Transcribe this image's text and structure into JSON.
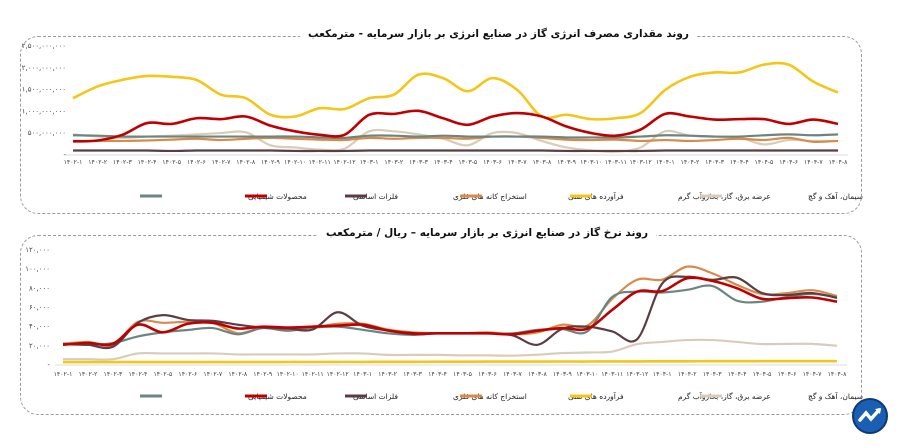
{
  "chart_data": [
    {
      "type": "line",
      "title": "روند مقداری مصرف انرژی گاز در صنایع انرژی بر بازار سرمایه - مترمکعب",
      "ylim": [
        0,
        2500000000
      ],
      "yticks": [
        0,
        500000000,
        1000000000,
        1500000000,
        2000000000,
        2500000000
      ],
      "ytick_labels": [
        "-",
        "۵۰۰,۰۰۰,۰۰۰",
        "۱,۰۰۰,۰۰۰,۰۰۰",
        "۱,۵۰۰,۰۰۰,۰۰۰",
        "۲,۰۰۰,۰۰۰,۰۰۰",
        "۲,۵۰۰,۰۰۰,۰۰۰"
      ],
      "grid": false,
      "legend": "bottom",
      "categories": [
        "۱۴۰۲-۱",
        "۱۴۰۲-۲",
        "۱۴۰۲-۳",
        "۱۴۰۲-۴",
        "۱۴۰۲-۵",
        "۱۴۰۲-۶",
        "۱۴۰۲-۷",
        "۱۴۰۲-۸",
        "۱۴۰۲-۹",
        "۱۴۰۲-۱۰",
        "۱۴۰۲-۱۱",
        "۱۴۰۲-۱۲",
        "۱۴۰۳-۱",
        "۱۴۰۳-۲",
        "۱۴۰۳-۳",
        "۱۴۰۳-۴",
        "۱۴۰۳-۵",
        "۱۴۰۳-۶",
        "۱۴۰۳-۷",
        "۱۴۰۳-۸",
        "۱۴۰۳-۹",
        "۱۴۰۳-۱۰",
        "۱۴۰۳-۱۱",
        "۱۴۰۳-۱۲",
        "۱۴۰۴-۱",
        "۱۴۰۴-۲",
        "۱۴۰۴-۳",
        "۱۴۰۴-۴",
        "۱۴۰۴-۵",
        "۱۴۰۴-۶",
        "۱۴۰۴-۷",
        "۱۴۰۴-۸"
      ],
      "series": [
        {
          "name": "محصولات شیمیایی",
          "color": "#6b8580",
          "values": [
            430000000,
            420000000,
            400000000,
            400000000,
            400000000,
            400000000,
            400000000,
            400000000,
            400000000,
            400000000,
            380000000,
            370000000,
            420000000,
            420000000,
            400000000,
            420000000,
            400000000,
            400000000,
            400000000,
            400000000,
            380000000,
            380000000,
            380000000,
            400000000,
            430000000,
            420000000,
            400000000,
            400000000,
            430000000,
            450000000,
            430000000,
            450000000
          ]
        },
        {
          "name": "فلزات اساسی",
          "color": "#c00000",
          "values": [
            290000000,
            310000000,
            440000000,
            710000000,
            690000000,
            820000000,
            800000000,
            860000000,
            650000000,
            520000000,
            440000000,
            440000000,
            900000000,
            920000000,
            990000000,
            820000000,
            670000000,
            860000000,
            940000000,
            860000000,
            630000000,
            480000000,
            420000000,
            560000000,
            920000000,
            860000000,
            790000000,
            800000000,
            800000000,
            690000000,
            790000000,
            690000000
          ]
        },
        {
          "name": "استخراج کانه های فلزی",
          "color": "#5a3e44",
          "values": [
            80000000,
            80000000,
            80000000,
            80000000,
            70000000,
            80000000,
            80000000,
            80000000,
            80000000,
            70000000,
            70000000,
            70000000,
            80000000,
            80000000,
            80000000,
            80000000,
            80000000,
            80000000,
            80000000,
            80000000,
            70000000,
            70000000,
            70000000,
            70000000,
            80000000,
            80000000,
            80000000,
            80000000,
            80000000,
            80000000,
            80000000,
            80000000
          ]
        },
        {
          "name": "فرآورده های نفتی",
          "color": "#d98a4b",
          "values": [
            300000000,
            300000000,
            300000000,
            310000000,
            330000000,
            350000000,
            320000000,
            350000000,
            370000000,
            350000000,
            330000000,
            320000000,
            370000000,
            350000000,
            370000000,
            370000000,
            350000000,
            400000000,
            400000000,
            370000000,
            330000000,
            320000000,
            330000000,
            300000000,
            320000000,
            300000000,
            320000000,
            350000000,
            320000000,
            370000000,
            280000000,
            300000000
          ]
        },
        {
          "name": "عرضه برق، گاز، بخاروآب گرم",
          "color": "#f5c518",
          "values": [
            1280000000,
            1550000000,
            1700000000,
            1790000000,
            1770000000,
            1700000000,
            1360000000,
            1280000000,
            900000000,
            860000000,
            1050000000,
            1030000000,
            1280000000,
            1360000000,
            1820000000,
            1740000000,
            1440000000,
            1740000000,
            1470000000,
            860000000,
            900000000,
            800000000,
            820000000,
            940000000,
            1470000000,
            1770000000,
            1870000000,
            1870000000,
            2050000000,
            2050000000,
            1660000000,
            1410000000
          ]
        },
        {
          "name": "سیمان، آهک و گچ",
          "color": "#d8ccbb",
          "values": [
            450000000,
            400000000,
            370000000,
            400000000,
            420000000,
            450000000,
            480000000,
            500000000,
            200000000,
            150000000,
            100000000,
            120000000,
            520000000,
            520000000,
            450000000,
            350000000,
            200000000,
            480000000,
            480000000,
            300000000,
            150000000,
            80000000,
            50000000,
            150000000,
            520000000,
            420000000,
            400000000,
            380000000,
            220000000,
            320000000,
            300000000,
            300000000
          ]
        }
      ]
    },
    {
      "type": "line",
      "title": "روند نرخ گاز در صنایع انرژی بر بازار سرمایه – ریال / مترمکعب",
      "ylim": [
        0,
        120000
      ],
      "yticks": [
        0,
        20000,
        40000,
        60000,
        80000,
        100000,
        120000
      ],
      "ytick_labels": [
        "-",
        "۲۰,۰۰۰",
        "۴۰,۰۰۰",
        "۶۰,۰۰۰",
        "۸۰,۰۰۰",
        "۱۰۰,۰۰۰",
        "۱۲۰,۰۰۰"
      ],
      "grid": false,
      "legend": "bottom",
      "categories": [
        "۱۴۰۲-۱",
        "۱۴۰۲-۲",
        "۱۴۰۲-۳",
        "۱۴۰۲-۴",
        "۱۴۰۲-۵",
        "۱۴۰۲-۶",
        "۱۴۰۲-۷",
        "۱۴۰۲-۸",
        "۱۴۰۲-۹",
        "۱۴۰۲-۱۰",
        "۱۴۰۲-۱۱",
        "۱۴۰۲-۱۲",
        "۱۴۰۳-۱",
        "۱۴۰۳-۲",
        "۱۴۰۳-۳",
        "۱۴۰۳-۴",
        "۱۴۰۳-۵",
        "۱۴۰۳-۶",
        "۱۴۰۳-۷",
        "۱۴۰۳-۸",
        "۱۴۰۳-۹",
        "۱۴۰۳-۱۰",
        "۱۴۰۳-۱۱",
        "۱۴۰۳-۱۲",
        "۱۴۰۴-۱",
        "۱۴۰۴-۲",
        "۱۴۰۴-۳",
        "۱۴۰۴-۴",
        "۱۴۰۴-۵",
        "۱۴۰۴-۶",
        "۱۴۰۴-۷",
        "۱۴۰۴-۸"
      ],
      "series": [
        {
          "name": "محصولات شیمیایی",
          "color": "#6b8580",
          "values": [
            20800,
            20000,
            21800,
            28800,
            33000,
            35500,
            37500,
            31000,
            37500,
            34700,
            38000,
            39000,
            35700,
            32000,
            30500,
            32000,
            32000,
            32000,
            32000,
            35700,
            36400,
            34000,
            70000,
            75500,
            74600,
            77400,
            81500,
            66000,
            65000,
            70000,
            73000,
            70000
          ]
        },
        {
          "name": "فلزات اساسی",
          "color": "#c00000",
          "values": [
            20000,
            22000,
            21000,
            41000,
            33000,
            42000,
            43000,
            37000,
            39000,
            38000,
            39000,
            40000,
            41000,
            35000,
            32000,
            32000,
            32000,
            32000,
            31000,
            34700,
            37500,
            36800,
            56500,
            75600,
            76000,
            89500,
            86700,
            79000,
            68000,
            68700,
            69400,
            65000
          ]
        },
        {
          "name": "استخراج کانه های فلزی",
          "color": "#5a3e44",
          "values": [
            21000,
            20000,
            18000,
            43000,
            51000,
            46000,
            45000,
            41000,
            38000,
            37000,
            36000,
            54000,
            40000,
            35000,
            31000,
            32000,
            32000,
            32000,
            30000,
            20000,
            36800,
            39000,
            34000,
            26000,
            84000,
            91000,
            87800,
            90000,
            74000,
            72000,
            74000,
            69000
          ]
        },
        {
          "name": "فرآورده های نفتی",
          "color": "#d98a4b",
          "values": [
            21000,
            23000,
            20000,
            44000,
            43000,
            44000,
            43000,
            32000,
            38000,
            37000,
            38000,
            42000,
            42000,
            36000,
            33000,
            32000,
            32000,
            33000,
            31000,
            33000,
            41000,
            40000,
            68000,
            88000,
            88000,
            101600,
            94700,
            82500,
            73000,
            74000,
            77000,
            71000
          ]
        },
        {
          "name": "عرضه برق، گاز، بخاروآب گرم",
          "color": "#f5c518",
          "values": [
            2000,
            2000,
            2000,
            2000,
            2000,
            2000,
            2000,
            2000,
            2000,
            2100,
            2100,
            2200,
            2200,
            2300,
            2300,
            2400,
            2400,
            2500,
            2500,
            2500,
            2600,
            2600,
            2700,
            2700,
            2800,
            2800,
            2900,
            2900,
            3000,
            3000,
            3000,
            3000
          ]
        },
        {
          "name": "سیمان، آهک و گچ",
          "color": "#d8ccbb",
          "values": [
            5000,
            5000,
            5000,
            11000,
            11000,
            11000,
            11000,
            10000,
            10000,
            10000,
            10000,
            11000,
            11000,
            9500,
            9500,
            9500,
            9000,
            9000,
            8700,
            9700,
            11400,
            12000,
            13000,
            20800,
            23000,
            25000,
            25000,
            23000,
            20800,
            21000,
            21000,
            19000
          ]
        }
      ]
    }
  ],
  "logo": {
    "color": "#1a5fb4"
  }
}
